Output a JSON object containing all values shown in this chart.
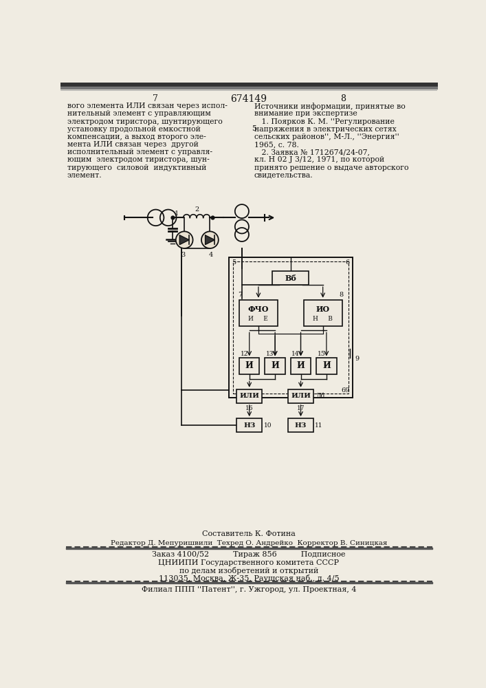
{
  "bg_color": "#f0ece2",
  "text_color": "#111111",
  "page_number_left": "7",
  "page_number_center": "674149",
  "page_number_right": "8",
  "left_text_lines": [
    "вого элемента ИЛИ связан через испол-",
    "нительный элемент с управляющим",
    "электродом тиристора, шунтирующего",
    "установку продольной емкостной",
    "компенсации, а выход второго эле-",
    "мента ИЛИ связан через  другой",
    "исполнительный элемент с управля-",
    "ющим  электродом тиристора, шун-",
    "тирующего  силовой  индуктивный",
    "элемент."
  ],
  "right_text_lines": [
    "Источники информации, принятые во",
    "внимание при экспертизе",
    "   1. Поярков К. М. ''Регулирование",
    "напряжения в электрических сетях",
    "сельских районов'', М-Л., ''Энергия''",
    "1965, с. 78.",
    "   2. Заявка № 1712674/24-07,",
    "кл. H 02 J 3/12, 1971, по которой",
    "принято решение о выдаче авторского",
    "свидетельства."
  ],
  "right_text_5": "5",
  "footer_line1": "Составитель К. Фотина",
  "footer_line2": "Редактор Д. Мепуришвили  Техред О. Андрейко  Корректор В. Синицкая",
  "footer_line3": "Заказ 4100/52          Тираж 856          Подписное",
  "footer_line4": "ЦНИИПИ Государственного комитета СССР",
  "footer_line5": "по делам изобретений и открытий",
  "footer_line6": "113035, Москва, Ж-35, Раушская наб., д. 4/5",
  "footer_line7": "Филиал ППП ''Патент'', г. Ужгород, ул. Проектная, 4"
}
